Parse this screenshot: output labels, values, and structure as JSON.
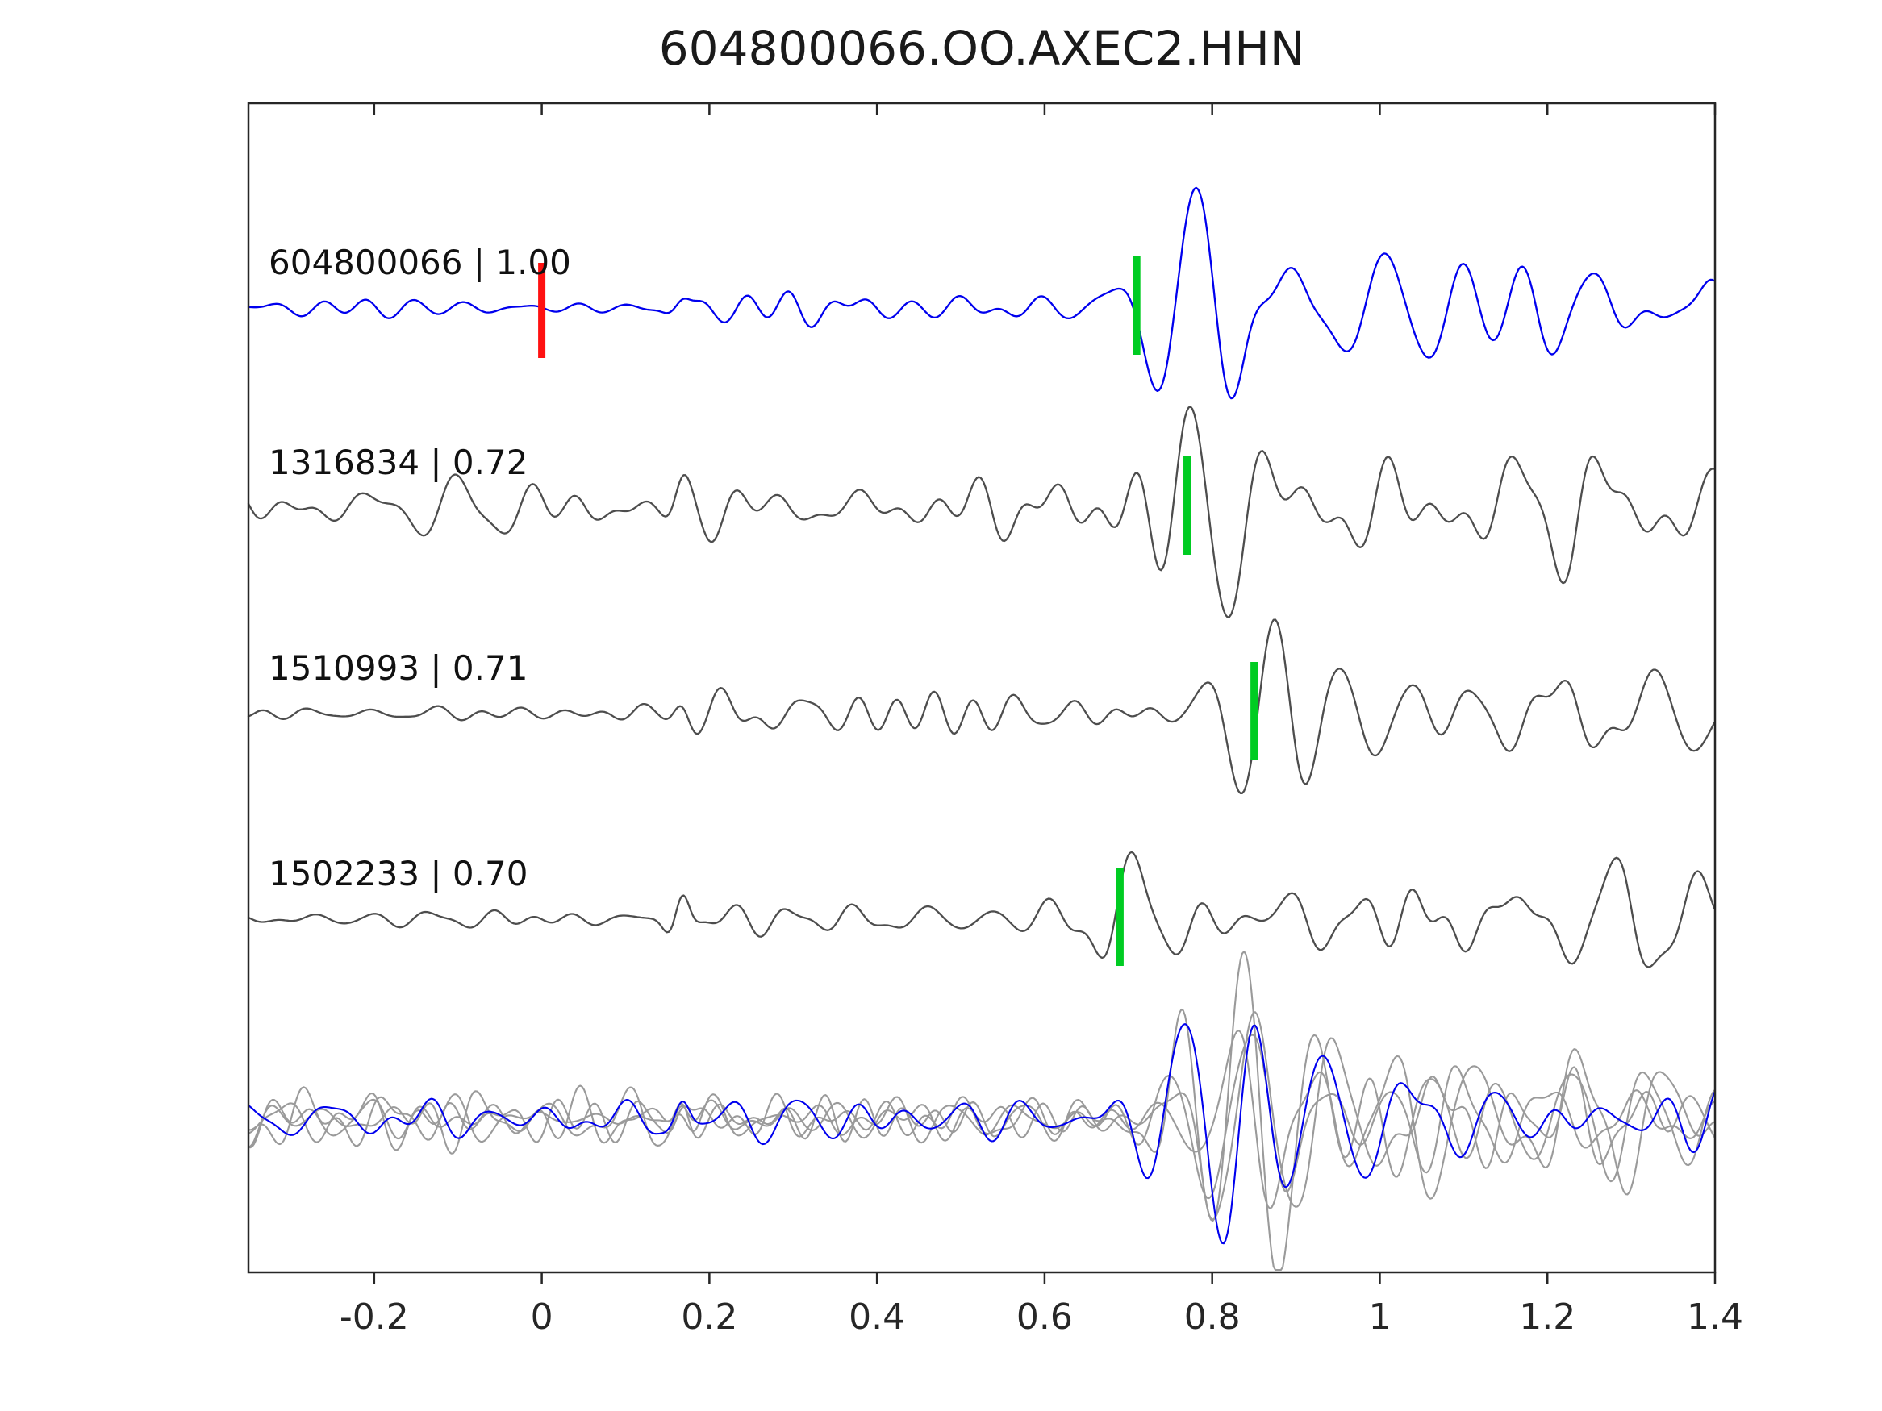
{
  "chart_data": {
    "type": "line",
    "title": "604800066.OO.AXEC2.HHN",
    "xlabel": "",
    "ylabel": "",
    "xlim": [
      -0.35,
      1.4
    ],
    "x_tick_values": [
      -0.2,
      0,
      0.2,
      0.4,
      0.6,
      0.8,
      1,
      1.2,
      1.4
    ],
    "x_tick_labels": [
      "-0.2",
      "0",
      "0.2",
      "0.4",
      "0.6",
      "0.8",
      "1",
      "1.2",
      "1.4"
    ],
    "grid": false,
    "legend": "none",
    "colors": {
      "primary_trace": "#0000ee",
      "match_trace": "#4d4d4d",
      "overlay_trace": "#9a9a9a",
      "pick_marker": "#00cc22",
      "reference_marker": "#ff1111",
      "axis": "#262626",
      "label_text": "#111111"
    },
    "reference_marker": {
      "time": 0,
      "row": 0
    },
    "traces": [
      {
        "row": 0,
        "label": "604800066 | 1.00",
        "id": "604800066",
        "correlation": 1.0,
        "color_key": "primary_trace",
        "pick_time": 0.71,
        "seed": 11,
        "onset": 0.7,
        "amp": 120,
        "noise_amp": 9,
        "blip_amp": 10,
        "phase": 1.2,
        "noise_ramp": true
      },
      {
        "row": 1,
        "label": "1316834 | 0.72",
        "id": "1316834",
        "correlation": 0.72,
        "color_key": "match_trace",
        "pick_time": 0.77,
        "seed": 22,
        "onset": 0.74,
        "amp": 118,
        "noise_amp": 18,
        "blip_amp": 14,
        "phase": -2.1,
        "noise_ramp": false
      },
      {
        "row": 2,
        "label": "1510993 | 0.71",
        "id": "1510993",
        "correlation": 0.71,
        "color_key": "match_trace",
        "pick_time": 0.85,
        "seed": 33,
        "onset": 0.8,
        "amp": 125,
        "noise_amp": 11,
        "blip_amp": 12,
        "phase": 1.0,
        "noise_ramp": true
      },
      {
        "row": 3,
        "label": "1502233 | 0.70",
        "id": "1502233",
        "correlation": 0.7,
        "color_key": "match_trace",
        "pick_time": 0.69,
        "seed": 44,
        "onset": 0.67,
        "amp": 120,
        "noise_amp": 10,
        "blip_amp": 34,
        "phase": -2.5,
        "noise_ramp": true
      },
      {
        "row": 4,
        "label": null,
        "id": "overlay-gray-1",
        "correlation": null,
        "color_key": "overlay_trace",
        "pick_time": null,
        "seed": 51,
        "onset": 0.73,
        "amp": 138,
        "noise_amp": 14,
        "blip_amp": 24,
        "phase": -2.2,
        "noise_ramp": false
      },
      {
        "row": 4,
        "label": null,
        "id": "overlay-gray-2",
        "correlation": null,
        "color_key": "overlay_trace",
        "pick_time": null,
        "seed": 52,
        "onset": 0.77,
        "amp": 145,
        "noise_amp": 13,
        "blip_amp": 20,
        "phase": 1.1,
        "noise_ramp": false
      },
      {
        "row": 4,
        "label": null,
        "id": "overlay-gray-3",
        "correlation": null,
        "color_key": "overlay_trace",
        "pick_time": null,
        "seed": 53,
        "onset": 0.8,
        "amp": 132,
        "noise_amp": 15,
        "blip_amp": 22,
        "phase": -1.8,
        "noise_ramp": false
      },
      {
        "row": 4,
        "label": null,
        "id": "overlay-gray-4",
        "correlation": null,
        "color_key": "overlay_trace",
        "pick_time": null,
        "seed": 54,
        "onset": 0.76,
        "amp": 118,
        "noise_amp": 12,
        "blip_amp": 18,
        "phase": 0.6,
        "noise_ramp": false
      },
      {
        "row": 4,
        "label": null,
        "id": "overlay-blue",
        "correlation": null,
        "color_key": "primary_trace",
        "pick_time": null,
        "seed": 55,
        "onset": 0.73,
        "amp": 140,
        "noise_amp": 12,
        "blip_amp": 20,
        "phase": -2.6,
        "noise_ramp": false
      }
    ]
  }
}
